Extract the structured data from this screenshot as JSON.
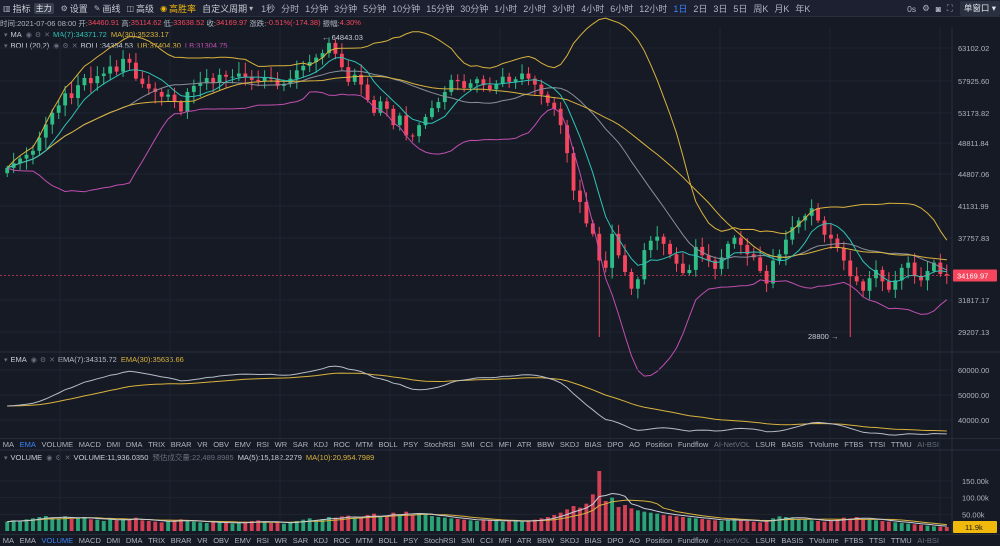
{
  "toolbar": {
    "left": [
      {
        "id": "indicator",
        "label": "指标",
        "icon": "bars-icon"
      },
      {
        "id": "main",
        "label": "主力",
        "badge": true
      },
      {
        "id": "settings",
        "label": "设置",
        "icon": "gear-icon"
      },
      {
        "id": "draw",
        "label": "画线",
        "icon": "pencil-icon"
      },
      {
        "id": "advanced",
        "label": "高级",
        "icon": "layers-icon"
      },
      {
        "id": "winrate",
        "label": "高胜率",
        "icon": "target-icon",
        "highlight": true
      },
      {
        "id": "custom",
        "label": "自定义周期",
        "icon": "chevron-down-icon"
      }
    ],
    "intervals": [
      "1秒",
      "分时",
      "1分钟",
      "3分钟",
      "5分钟",
      "10分钟",
      "15分钟",
      "30分钟",
      "1小时",
      "2小时",
      "3小时",
      "4小时",
      "6小时",
      "12小时",
      "1日",
      "2日",
      "3日",
      "5日",
      "周K",
      "月K",
      "年K"
    ],
    "active_interval": "1日",
    "right_text": "0s",
    "single_window": "单窗口"
  },
  "info": {
    "time_label": "时间:2021-07-06 08:00",
    "open_label": "开:",
    "open": "34460.91",
    "high_label": "高:",
    "high": "35114.62",
    "low_label": "低:",
    "low": "33638.52",
    "close_label": "收:",
    "close": "34169.97",
    "change_label": "涨跌:",
    "change": "-0.51%(-174.38)",
    "amp_label": "振幅:",
    "amp": "4.30%"
  },
  "legend_main": {
    "ma_name": "MA",
    "ma7": "MA(7):34371.72",
    "ma30": "MA(30):35233.17",
    "boll_name": "BOLL(20,2)",
    "boll": "BOLL:34354.53",
    "ub": "UB:37404.30",
    "lb": "LB:31304.75"
  },
  "legend_ema": {
    "name": "EMA",
    "ema7": "EMA(7):34315.72",
    "ema30": "EMA(30):35636.66"
  },
  "legend_vol": {
    "name": "VOLUME",
    "volume": "VOLUME:11,936.0350",
    "turnover": "预估成交量:22,489.8985",
    "ma5": "MA(5):15,182.2279",
    "ma10": "MA(10):20,954.7989"
  },
  "main_axis": {
    "ticks": [
      "63102.02",
      "57925.60",
      "53173.82",
      "48811.84",
      "44807.06",
      "41131.99",
      "37757.83",
      "31817.17",
      "29207.13"
    ],
    "current_price": "34169.97",
    "max_label": "64843.03",
    "min_label": "28800"
  },
  "ema_axis": {
    "ticks": [
      "60000.00",
      "50000.00",
      "40000.00"
    ]
  },
  "vol_axis": {
    "ticks": [
      "150.00k",
      "100.00k",
      "50.00k"
    ],
    "current": "11.9k"
  },
  "indicators": [
    "MA",
    "EMA",
    "VOLUME",
    "MACD",
    "DMI",
    "DMA",
    "TRIX",
    "BRAR",
    "VR",
    "OBV",
    "EMV",
    "RSI",
    "WR",
    "SAR",
    "KDJ",
    "ROC",
    "MTM",
    "BOLL",
    "PSY",
    "StochRSI",
    "SMI",
    "CCI",
    "MFI",
    "ATR",
    "BBW",
    "SKDJ",
    "BIAS",
    "DPO",
    "AO",
    "Position",
    "Fundflow",
    "AI-NetVOL",
    "LSUR",
    "BASIS",
    "TVolume",
    "FTBS",
    "TTSI",
    "TTMU",
    "AI-BSI"
  ],
  "active_indicators": [
    "EMA"
  ],
  "dim_indicators": [
    "AI-NetVOL",
    "AI-BSI"
  ],
  "indicators2": [
    "MA",
    "EMA",
    "VOLUME",
    "MACD",
    "DMI",
    "DMA",
    "TRIX",
    "BRAR",
    "VR",
    "OBV",
    "EMV",
    "RSI",
    "WR",
    "SAR",
    "KDJ",
    "ROC",
    "MTM",
    "BOLL",
    "PSY",
    "StochRSI",
    "SMI",
    "CCI",
    "MFI",
    "ATR",
    "BBW",
    "SKDJ",
    "BIAS",
    "DPO",
    "AO",
    "Position",
    "Fundflow",
    "AI-NetVOL",
    "LSUR",
    "BASIS",
    "TVolume",
    "FTBS",
    "TTSI",
    "TTMU",
    "AI-BSI"
  ],
  "active_indicators2": [
    "VOLUME"
  ],
  "colors": {
    "up": "#2ebd85",
    "down": "#f6465d",
    "ma7": "#2ec4b6",
    "ma30": "#d9b33d",
    "ub": "#d9b33d",
    "lb": "#c04fb0",
    "ema7": "#b8bcc6",
    "ema30": "#d9b33d"
  },
  "chart_data": {
    "type": "candlestick",
    "y_range": [
      28800,
      64843.03
    ],
    "closes": [
      45600,
      46200,
      46800,
      47300,
      47800,
      49600,
      51500,
      53200,
      54300,
      56100,
      55400,
      57300,
      58400,
      57600,
      58700,
      59100,
      60200,
      59400,
      61400,
      60800,
      58300,
      57500,
      56800,
      56300,
      55600,
      55900,
      54800,
      53400,
      56300,
      57200,
      57600,
      58400,
      57700,
      58900,
      58600,
      58600,
      59100,
      58600,
      58100,
      57900,
      58400,
      58300,
      57200,
      57500,
      58300,
      59600,
      60300,
      60900,
      61600,
      62300,
      63900,
      62200,
      60100,
      57800,
      58900,
      57400,
      55100,
      53200,
      54900,
      53800,
      51400,
      52800,
      49900,
      49800,
      51400,
      52600,
      53900,
      54800,
      56300,
      58100,
      57900,
      56900,
      57600,
      58200,
      57300,
      56700,
      57500,
      58600,
      57800,
      58200,
      59100,
      58300,
      57400,
      55900,
      54700,
      53800,
      51400,
      47500,
      42900,
      41600,
      39300,
      38200,
      35600,
      34900,
      38200,
      36100,
      34500,
      32900,
      33800,
      36600,
      37500,
      37900,
      37200,
      36200,
      35300,
      34400,
      34700,
      36900,
      36100,
      35600,
      34800,
      35900,
      37200,
      37800,
      37100,
      36200,
      35900,
      34600,
      33400,
      35600,
      36200,
      37600,
      38900,
      39600,
      40100,
      40900,
      39600,
      38100,
      37700,
      36800,
      35600,
      34100,
      33600,
      32700,
      33900,
      34700,
      33600,
      32800,
      33700,
      34900,
      35400,
      34100,
      33700,
      34600,
      35400,
      34300,
      34170
    ],
    "volumes": [
      28,
      32,
      30,
      35,
      38,
      42,
      45,
      40,
      38,
      44,
      36,
      40,
      42,
      35,
      34,
      30,
      38,
      32,
      36,
      34,
      40,
      32,
      30,
      28,
      26,
      30,
      32,
      35,
      30,
      28,
      26,
      24,
      28,
      26,
      24,
      22,
      25,
      28,
      30,
      32,
      26,
      24,
      28,
      22,
      25,
      30,
      34,
      38,
      32,
      36,
      42,
      40,
      44,
      46,
      38,
      40,
      48,
      52,
      42,
      46,
      55,
      50,
      58,
      48,
      52,
      50,
      45,
      42,
      40,
      38,
      36,
      34,
      32,
      30,
      34,
      32,
      30,
      28,
      30,
      32,
      28,
      30,
      34,
      38,
      42,
      48,
      55,
      65,
      75,
      70,
      82,
      110,
      180,
      90,
      100,
      72,
      78,
      68,
      62,
      58,
      55,
      52,
      48,
      46,
      44,
      42,
      40,
      38,
      36,
      34,
      32,
      30,
      34,
      36,
      32,
      30,
      28,
      26,
      32,
      38,
      44,
      42,
      40,
      36,
      34,
      32,
      30,
      28,
      32,
      36,
      40,
      38,
      42,
      36,
      34,
      32,
      30,
      28,
      26,
      24,
      22,
      20,
      18,
      16,
      14,
      13,
      12
    ]
  }
}
